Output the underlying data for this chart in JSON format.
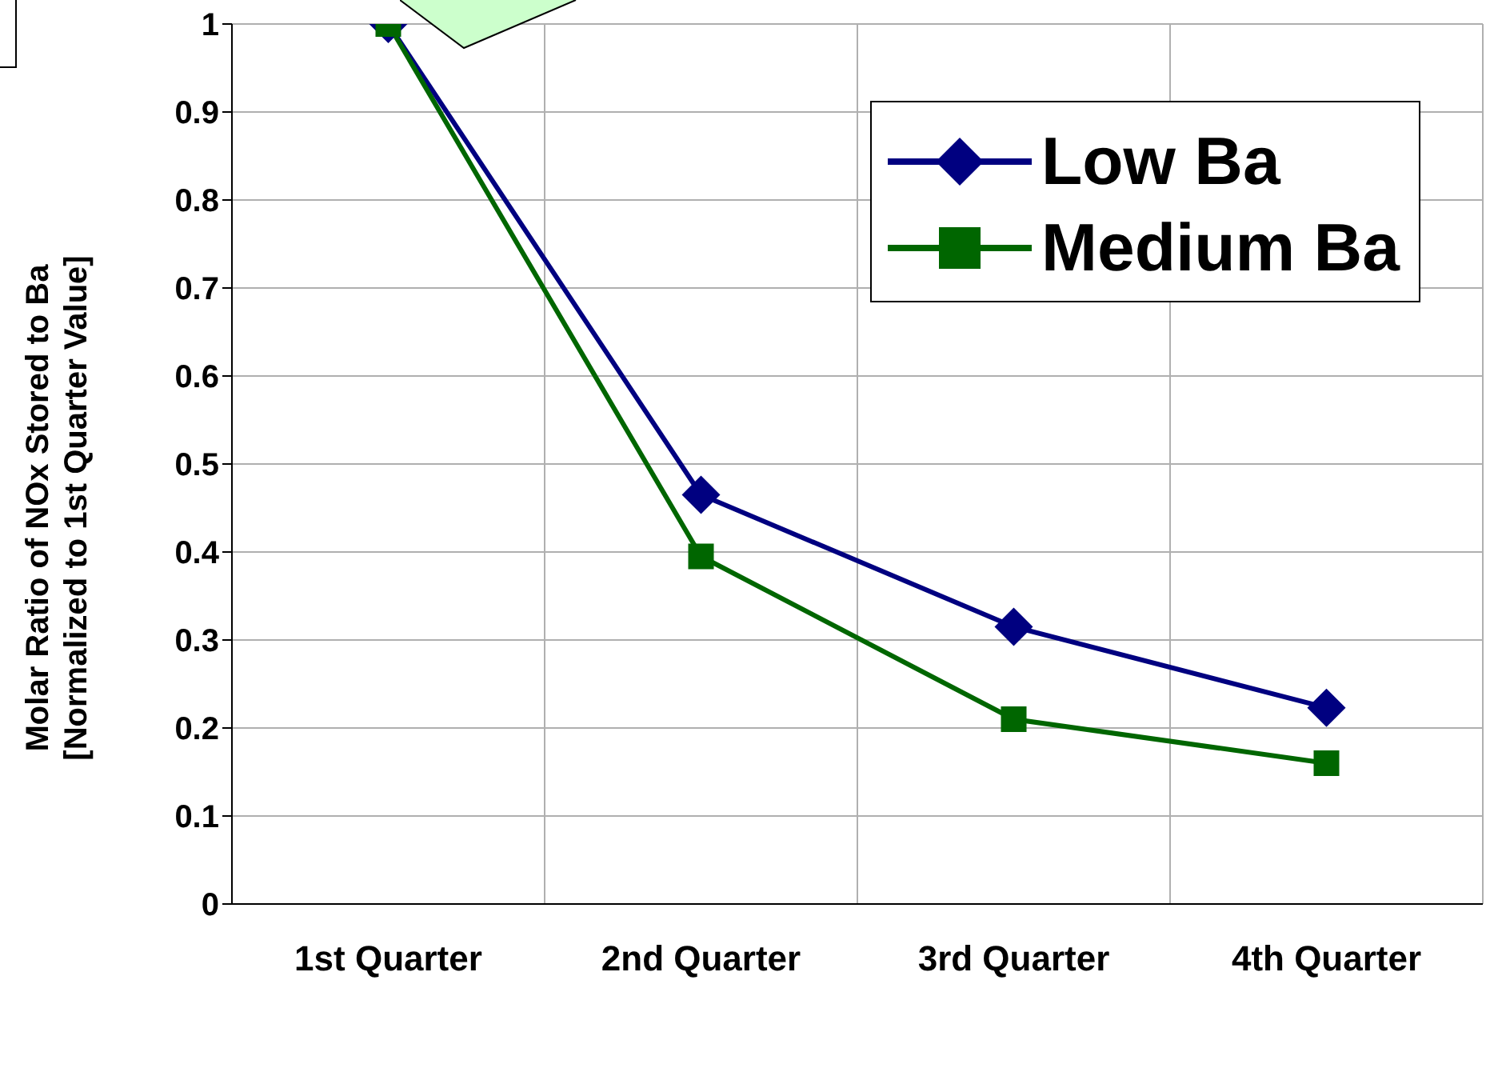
{
  "chart_data": {
    "type": "line",
    "ylabel": "Molar Ratio of NOx Stored to Ba\n[Normalized to 1st Quarter Value]",
    "categories": [
      "1st Quarter",
      "2nd Quarter",
      "3rd Quarter",
      "4th Quarter"
    ],
    "series": [
      {
        "name": "Low Ba",
        "color": "#000080",
        "marker": "diamond",
        "values": [
          1,
          0.465,
          0.315,
          0.223
        ]
      },
      {
        "name": "Medium Ba",
        "color": "#006600",
        "marker": "square",
        "values": [
          1,
          0.395,
          0.21,
          0.16
        ]
      }
    ],
    "ylim": [
      0,
      1
    ],
    "yticks": [
      0,
      0.1,
      0.2,
      0.3,
      0.4,
      0.5,
      0.6,
      0.7,
      0.8,
      0.9,
      1
    ],
    "grid": true,
    "legend": "top right",
    "line_style": "solid"
  }
}
